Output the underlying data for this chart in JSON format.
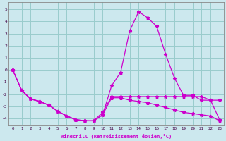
{
  "xlabel": "Windchill (Refroidissement éolien,°C)",
  "bg_color": "#cce8ee",
  "line_color": "#cc00cc",
  "grid_color": "#99cccc",
  "xlim": [
    -0.5,
    23.5
  ],
  "ylim": [
    -4.6,
    5.6
  ],
  "yticks": [
    -4,
    -3,
    -2,
    -1,
    0,
    1,
    2,
    3,
    4,
    5
  ],
  "xticks": [
    0,
    1,
    2,
    3,
    4,
    5,
    6,
    7,
    8,
    9,
    10,
    11,
    12,
    13,
    14,
    15,
    16,
    17,
    18,
    19,
    20,
    21,
    22,
    23
  ],
  "series_x": [
    0,
    1,
    2,
    3,
    4,
    5,
    6,
    7,
    8,
    9,
    10,
    11,
    12,
    13,
    14,
    15,
    16,
    17,
    18,
    19,
    20,
    21,
    22,
    23
  ],
  "series": [
    [
      0,
      -1.7,
      -2.4,
      -2.6,
      -2.9,
      -3.4,
      -3.8,
      -4.1,
      -4.2,
      -4.2,
      -3.7,
      -1.3,
      -0.2,
      3.2,
      4.8,
      4.3,
      3.6,
      1.3,
      -0.7,
      -2.1,
      -2.1,
      -2.5,
      -2.5,
      -4.1
    ],
    [
      0,
      -1.7,
      -2.4,
      -2.6,
      -2.9,
      -3.4,
      -3.8,
      -4.1,
      -4.2,
      -4.2,
      -3.5,
      -2.2,
      -2.2,
      -2.2,
      -2.2,
      -2.2,
      -2.2,
      -2.2,
      -2.2,
      -2.2,
      -2.2,
      -2.2,
      -2.5,
      -2.5
    ],
    [
      0,
      -1.7,
      -2.4,
      -2.6,
      -2.9,
      -3.4,
      -3.8,
      -4.1,
      -4.2,
      -4.2,
      -3.7,
      -2.3,
      -2.3,
      -2.5,
      -2.6,
      -2.7,
      -2.9,
      -3.1,
      -3.3,
      -3.5,
      -3.6,
      -3.7,
      -3.8,
      -4.2
    ]
  ]
}
